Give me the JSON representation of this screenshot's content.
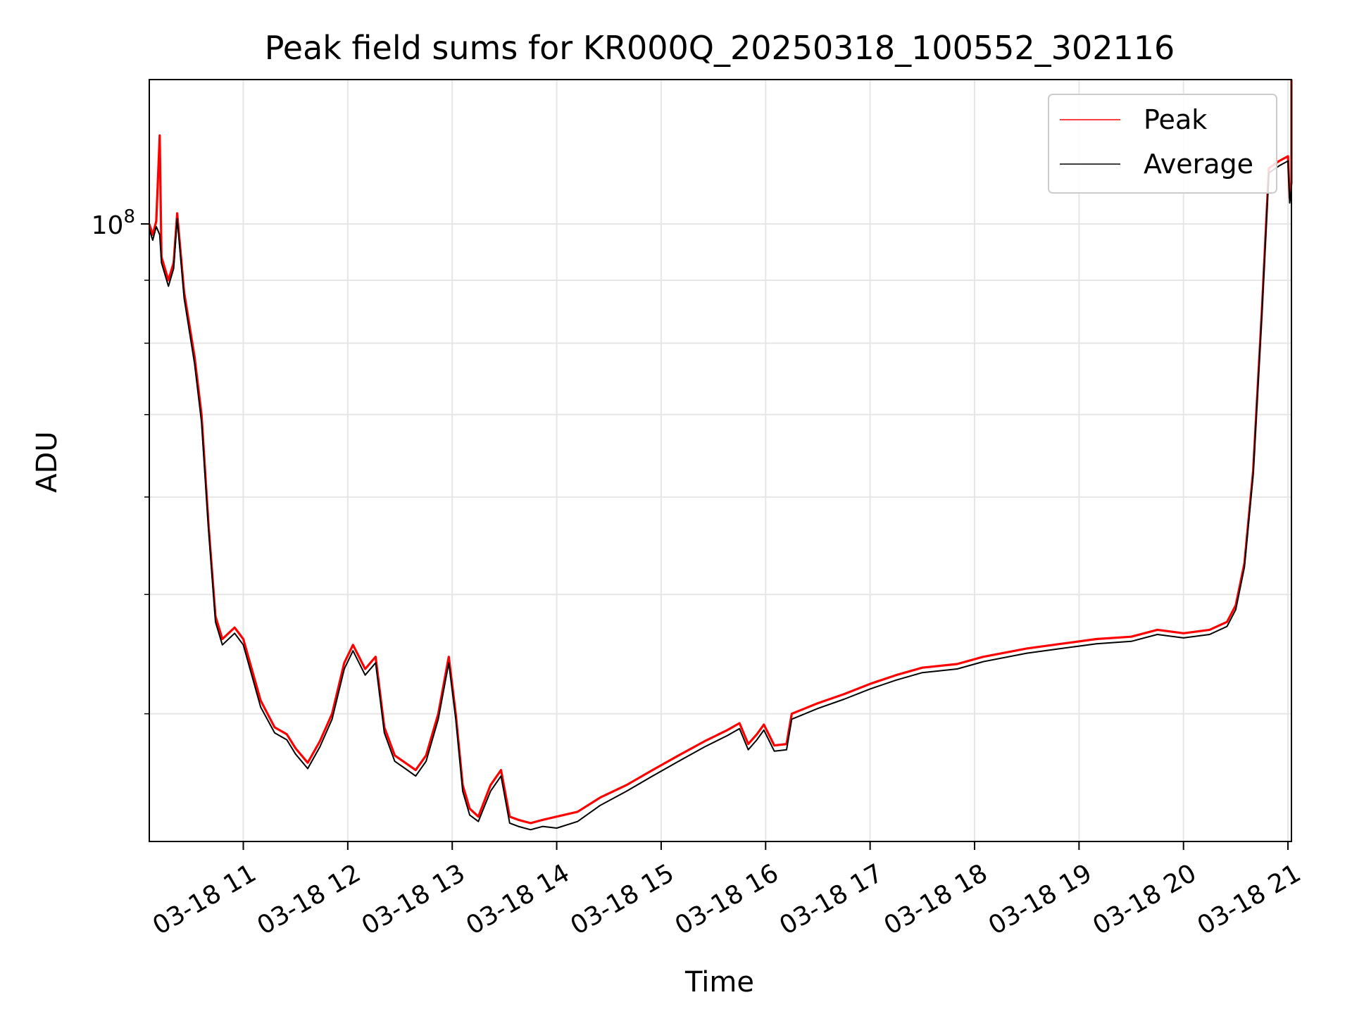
{
  "chart_data": {
    "type": "line",
    "title": "Peak field sums for KR000Q_20250318_100552_302116",
    "xlabel": "Time",
    "ylabel": "ADU",
    "y_scale": "log",
    "ylim": [
      31500000,
      131000000
    ],
    "xlim": [
      "2025-03-18 10:06",
      "2025-03-18 21:02"
    ],
    "x_ticks": [
      {
        "t": "2025-03-18 11:00",
        "label": "03-18 11"
      },
      {
        "t": "2025-03-18 12:00",
        "label": "03-18 12"
      },
      {
        "t": "2025-03-18 13:00",
        "label": "03-18 13"
      },
      {
        "t": "2025-03-18 14:00",
        "label": "03-18 14"
      },
      {
        "t": "2025-03-18 15:00",
        "label": "03-18 15"
      },
      {
        "t": "2025-03-18 16:00",
        "label": "03-18 16"
      },
      {
        "t": "2025-03-18 17:00",
        "label": "03-18 17"
      },
      {
        "t": "2025-03-18 18:00",
        "label": "03-18 18"
      },
      {
        "t": "2025-03-18 19:00",
        "label": "03-18 19"
      },
      {
        "t": "2025-03-18 20:00",
        "label": "03-18 20"
      },
      {
        "t": "2025-03-18 21:00",
        "label": "03-18 21"
      }
    ],
    "y_major_tick": {
      "value": 100000000,
      "base": "10",
      "exp": "8"
    },
    "y_minor_ticks": [
      40000000,
      50000000,
      60000000,
      70000000,
      80000000,
      90000000
    ],
    "grid": true,
    "legend_position": "top-right",
    "series": [
      {
        "name": "Peak",
        "color": "#ff0000",
        "points": [
          [
            "2025-03-18 10:06",
            100000000
          ],
          [
            "2025-03-18 10:08",
            98000000
          ],
          [
            "2025-03-18 10:10",
            100500000
          ],
          [
            "2025-03-18 10:12",
            118000000
          ],
          [
            "2025-03-18 10:13",
            94000000
          ],
          [
            "2025-03-18 10:17",
            90000000
          ],
          [
            "2025-03-18 10:20",
            93000000
          ],
          [
            "2025-03-18 10:22",
            102000000
          ],
          [
            "2025-03-18 10:26",
            88000000
          ],
          [
            "2025-03-18 10:32",
            78000000
          ],
          [
            "2025-03-18 10:36",
            70000000
          ],
          [
            "2025-03-18 10:40",
            57000000
          ],
          [
            "2025-03-18 10:44",
            48000000
          ],
          [
            "2025-03-18 10:48",
            46000000
          ],
          [
            "2025-03-18 10:55",
            47000000
          ],
          [
            "2025-03-18 11:00",
            46000000
          ],
          [
            "2025-03-18 11:10",
            41000000
          ],
          [
            "2025-03-18 11:18",
            39000000
          ],
          [
            "2025-03-18 11:25",
            38500000
          ],
          [
            "2025-03-18 11:30",
            37500000
          ],
          [
            "2025-03-18 11:37",
            36500000
          ],
          [
            "2025-03-18 11:44",
            38000000
          ],
          [
            "2025-03-18 11:51",
            40000000
          ],
          [
            "2025-03-18 11:58",
            44000000
          ],
          [
            "2025-03-18 12:03",
            45500000
          ],
          [
            "2025-03-18 12:10",
            43500000
          ],
          [
            "2025-03-18 12:16",
            44500000
          ],
          [
            "2025-03-18 12:21",
            39000000
          ],
          [
            "2025-03-18 12:27",
            37000000
          ],
          [
            "2025-03-18 12:33",
            36500000
          ],
          [
            "2025-03-18 12:39",
            36000000
          ],
          [
            "2025-03-18 12:45",
            37000000
          ],
          [
            "2025-03-18 12:52",
            40000000
          ],
          [
            "2025-03-18 12:58",
            44500000
          ],
          [
            "2025-03-18 13:02",
            40000000
          ],
          [
            "2025-03-18 13:06",
            35000000
          ],
          [
            "2025-03-18 13:10",
            33500000
          ],
          [
            "2025-03-18 13:15",
            33000000
          ],
          [
            "2025-03-18 13:22",
            35000000
          ],
          [
            "2025-03-18 13:28",
            36000000
          ],
          [
            "2025-03-18 13:33",
            33000000
          ],
          [
            "2025-03-18 13:38",
            32800000
          ],
          [
            "2025-03-18 13:45",
            32600000
          ],
          [
            "2025-03-18 13:52",
            32800000
          ],
          [
            "2025-03-18 14:00",
            33000000
          ],
          [
            "2025-03-18 14:12",
            33300000
          ],
          [
            "2025-03-18 14:25",
            34200000
          ],
          [
            "2025-03-18 14:40",
            35000000
          ],
          [
            "2025-03-18 14:55",
            36000000
          ],
          [
            "2025-03-18 15:10",
            37000000
          ],
          [
            "2025-03-18 15:25",
            38000000
          ],
          [
            "2025-03-18 15:38",
            38800000
          ],
          [
            "2025-03-18 15:45",
            39300000
          ],
          [
            "2025-03-18 15:50",
            37800000
          ],
          [
            "2025-03-18 15:55",
            38500000
          ],
          [
            "2025-03-18 15:59",
            39200000
          ],
          [
            "2025-03-18 16:05",
            37700000
          ],
          [
            "2025-03-18 16:12",
            37800000
          ],
          [
            "2025-03-18 16:15",
            40000000
          ],
          [
            "2025-03-18 16:30",
            40800000
          ],
          [
            "2025-03-18 16:45",
            41500000
          ],
          [
            "2025-03-18 17:00",
            42300000
          ],
          [
            "2025-03-18 17:15",
            43000000
          ],
          [
            "2025-03-18 17:30",
            43600000
          ],
          [
            "2025-03-18 17:50",
            43900000
          ],
          [
            "2025-03-18 18:05",
            44500000
          ],
          [
            "2025-03-18 18:30",
            45200000
          ],
          [
            "2025-03-18 18:50",
            45600000
          ],
          [
            "2025-03-18 19:10",
            46000000
          ],
          [
            "2025-03-18 19:30",
            46200000
          ],
          [
            "2025-03-18 19:45",
            46800000
          ],
          [
            "2025-03-18 20:00",
            46500000
          ],
          [
            "2025-03-18 20:15",
            46800000
          ],
          [
            "2025-03-18 20:25",
            47500000
          ],
          [
            "2025-03-18 20:30",
            49000000
          ],
          [
            "2025-03-18 20:35",
            53000000
          ],
          [
            "2025-03-18 20:40",
            63000000
          ],
          [
            "2025-03-18 20:45",
            85000000
          ],
          [
            "2025-03-18 20:49",
            111000000
          ],
          [
            "2025-03-18 20:55",
            112500000
          ],
          [
            "2025-03-18 21:00",
            113500000
          ],
          [
            "2025-03-18 21:01",
            105000000
          ],
          [
            "2025-03-18 21:02",
            108000000
          ],
          [
            "2025-03-18 21:02",
            131000000
          ]
        ]
      },
      {
        "name": "Average",
        "color": "#000000",
        "points": [
          [
            "2025-03-18 10:06",
            99000000
          ],
          [
            "2025-03-18 10:08",
            97000000
          ],
          [
            "2025-03-18 10:10",
            99500000
          ],
          [
            "2025-03-18 10:12",
            98000000
          ],
          [
            "2025-03-18 10:13",
            93000000
          ],
          [
            "2025-03-18 10:17",
            89000000
          ],
          [
            "2025-03-18 10:20",
            92000000
          ],
          [
            "2025-03-18 10:22",
            101000000
          ],
          [
            "2025-03-18 10:26",
            87000000
          ],
          [
            "2025-03-18 10:32",
            77000000
          ],
          [
            "2025-03-18 10:36",
            69000000
          ],
          [
            "2025-03-18 10:40",
            56500000
          ],
          [
            "2025-03-18 10:44",
            47500000
          ],
          [
            "2025-03-18 10:48",
            45500000
          ],
          [
            "2025-03-18 10:55",
            46500000
          ],
          [
            "2025-03-18 11:00",
            45500000
          ],
          [
            "2025-03-18 11:10",
            40500000
          ],
          [
            "2025-03-18 11:18",
            38600000
          ],
          [
            "2025-03-18 11:25",
            38100000
          ],
          [
            "2025-03-18 11:30",
            37100000
          ],
          [
            "2025-03-18 11:37",
            36100000
          ],
          [
            "2025-03-18 11:44",
            37600000
          ],
          [
            "2025-03-18 11:51",
            39600000
          ],
          [
            "2025-03-18 11:58",
            43500000
          ],
          [
            "2025-03-18 12:03",
            45000000
          ],
          [
            "2025-03-18 12:10",
            43000000
          ],
          [
            "2025-03-18 12:16",
            44000000
          ],
          [
            "2025-03-18 12:21",
            38600000
          ],
          [
            "2025-03-18 12:27",
            36600000
          ],
          [
            "2025-03-18 12:33",
            36100000
          ],
          [
            "2025-03-18 12:39",
            35600000
          ],
          [
            "2025-03-18 12:45",
            36600000
          ],
          [
            "2025-03-18 12:52",
            39600000
          ],
          [
            "2025-03-18 12:58",
            44000000
          ],
          [
            "2025-03-18 13:02",
            39600000
          ],
          [
            "2025-03-18 13:06",
            34600000
          ],
          [
            "2025-03-18 13:10",
            33100000
          ],
          [
            "2025-03-18 13:15",
            32700000
          ],
          [
            "2025-03-18 13:22",
            34600000
          ],
          [
            "2025-03-18 13:28",
            35600000
          ],
          [
            "2025-03-18 13:33",
            32600000
          ],
          [
            "2025-03-18 13:38",
            32400000
          ],
          [
            "2025-03-18 13:45",
            32200000
          ],
          [
            "2025-03-18 13:52",
            32400000
          ],
          [
            "2025-03-18 14:00",
            32300000
          ],
          [
            "2025-03-18 14:12",
            32700000
          ],
          [
            "2025-03-18 14:25",
            33700000
          ],
          [
            "2025-03-18 14:40",
            34600000
          ],
          [
            "2025-03-18 14:55",
            35600000
          ],
          [
            "2025-03-18 15:10",
            36600000
          ],
          [
            "2025-03-18 15:25",
            37600000
          ],
          [
            "2025-03-18 15:38",
            38400000
          ],
          [
            "2025-03-18 15:45",
            38900000
          ],
          [
            "2025-03-18 15:50",
            37400000
          ],
          [
            "2025-03-18 15:55",
            38100000
          ],
          [
            "2025-03-18 15:59",
            38800000
          ],
          [
            "2025-03-18 16:05",
            37300000
          ],
          [
            "2025-03-18 16:12",
            37400000
          ],
          [
            "2025-03-18 16:15",
            39600000
          ],
          [
            "2025-03-18 16:30",
            40400000
          ],
          [
            "2025-03-18 16:45",
            41100000
          ],
          [
            "2025-03-18 17:00",
            41900000
          ],
          [
            "2025-03-18 17:15",
            42600000
          ],
          [
            "2025-03-18 17:30",
            43200000
          ],
          [
            "2025-03-18 17:50",
            43500000
          ],
          [
            "2025-03-18 18:05",
            44100000
          ],
          [
            "2025-03-18 18:30",
            44800000
          ],
          [
            "2025-03-18 18:50",
            45200000
          ],
          [
            "2025-03-18 19:10",
            45600000
          ],
          [
            "2025-03-18 19:30",
            45800000
          ],
          [
            "2025-03-18 19:45",
            46400000
          ],
          [
            "2025-03-18 20:00",
            46100000
          ],
          [
            "2025-03-18 20:15",
            46400000
          ],
          [
            "2025-03-18 20:25",
            47100000
          ],
          [
            "2025-03-18 20:30",
            48600000
          ],
          [
            "2025-03-18 20:35",
            52600000
          ],
          [
            "2025-03-18 20:40",
            62500000
          ],
          [
            "2025-03-18 20:45",
            84500000
          ],
          [
            "2025-03-18 20:49",
            110000000
          ],
          [
            "2025-03-18 20:55",
            111500000
          ],
          [
            "2025-03-18 21:00",
            112500000
          ],
          [
            "2025-03-18 21:01",
            104000000
          ],
          [
            "2025-03-18 21:02",
            107000000
          ]
        ]
      }
    ]
  }
}
